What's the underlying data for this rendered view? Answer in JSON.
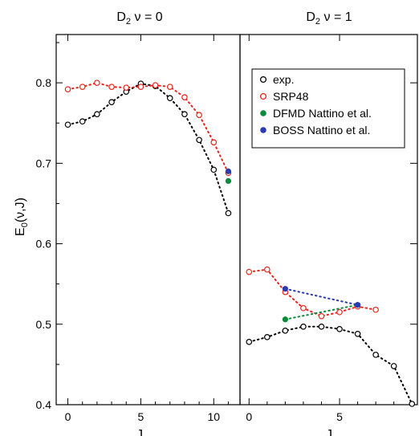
{
  "chart_data": {
    "type": "scatter",
    "ylabel": "E",
    "ylabel_sub": "0",
    "ylabel_tail": "(ν,J)",
    "ylim": [
      0.4,
      0.86
    ],
    "yticks": [
      "0.4",
      "0.5",
      "0.6",
      "0.7",
      "0.8"
    ],
    "yticks_values": [
      0.4,
      0.5,
      0.6,
      0.7,
      0.8
    ],
    "grid": false,
    "legend_placement": "upper-right (right panel)",
    "legend": [
      {
        "label": "exp.",
        "color": "#000000"
      },
      {
        "label": "SRP48",
        "color": "#e8231a"
      },
      {
        "label": "DFMD Nattino et al.",
        "color": "#0a8a3a"
      },
      {
        "label": "BOSS Nattino et al.",
        "color": "#2a3ab0"
      }
    ],
    "panels": [
      {
        "title_prefix": "D",
        "title_sub": "2",
        "title_suffix": " ν = 0",
        "xlabel": "J",
        "xlim": [
          -0.8,
          11.8
        ],
        "xticks": [
          "0",
          "5",
          "10"
        ],
        "xticks_values": [
          0,
          5,
          10
        ],
        "series": [
          {
            "key": "exp",
            "marker": "open",
            "color": "#000000",
            "line": "dotted",
            "x": [
              0,
              1,
              2,
              3,
              4,
              5,
              6,
              7,
              8,
              9,
              10,
              11
            ],
            "y": [
              0.748,
              0.752,
              0.761,
              0.776,
              0.789,
              0.799,
              0.796,
              0.781,
              0.761,
              0.729,
              0.692,
              0.638
            ]
          },
          {
            "key": "srp48",
            "marker": "open",
            "color": "#e8231a",
            "line": "dotted",
            "x": [
              0,
              1,
              2,
              3,
              4,
              5,
              6,
              7,
              8,
              9,
              10,
              11
            ],
            "y": [
              0.792,
              0.795,
              0.8,
              0.795,
              0.794,
              0.795,
              0.797,
              0.795,
              0.782,
              0.76,
              0.726,
              0.688
            ]
          },
          {
            "key": "dfmd",
            "marker": "filled",
            "color": "#0a8a3a",
            "line": "none",
            "x": [
              11
            ],
            "y": [
              0.678
            ]
          },
          {
            "key": "boss",
            "marker": "filled",
            "color": "#2a3ab0",
            "line": "none",
            "x": [
              11
            ],
            "y": [
              0.69
            ]
          }
        ]
      },
      {
        "title_prefix": "D",
        "title_sub": "2",
        "title_suffix": " ν = 1",
        "xlabel": "J",
        "xlim": [
          -0.5,
          9.3
        ],
        "xticks": [
          "0",
          "5"
        ],
        "xticks_values": [
          0,
          5
        ],
        "series": [
          {
            "key": "exp",
            "marker": "open",
            "color": "#000000",
            "line": "dotted",
            "x": [
              0,
              1,
              2,
              3,
              4,
              5,
              6,
              7,
              8,
              9
            ],
            "y": [
              0.478,
              0.484,
              0.492,
              0.497,
              0.497,
              0.494,
              0.488,
              0.462,
              0.448,
              0.401
            ]
          },
          {
            "key": "srp48",
            "marker": "open",
            "color": "#e8231a",
            "line": "dotted",
            "x": [
              0,
              1,
              2,
              3,
              4,
              5,
              6,
              7
            ],
            "y": [
              0.565,
              0.568,
              0.54,
              0.52,
              0.51,
              0.515,
              0.522,
              0.518
            ]
          },
          {
            "key": "dfmd",
            "marker": "filled",
            "color": "#0a8a3a",
            "line": "dotted",
            "x": [
              2,
              6
            ],
            "y": [
              0.506,
              0.524
            ]
          },
          {
            "key": "boss",
            "marker": "filled",
            "color": "#2a3ab0",
            "line": "dotted",
            "x": [
              2,
              6
            ],
            "y": [
              0.544,
              0.524
            ]
          }
        ]
      }
    ]
  }
}
